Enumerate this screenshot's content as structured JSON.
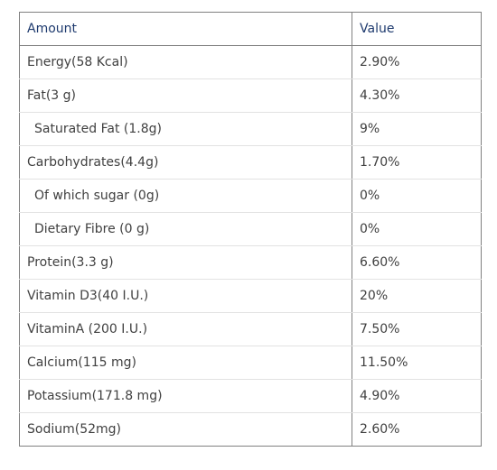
{
  "table": {
    "headers": {
      "amount": "Amount",
      "value": "Value"
    },
    "rows": [
      {
        "amount": "Energy(58 Kcal)",
        "value": "2.90%",
        "indent": false
      },
      {
        "amount": "Fat(3 g)",
        "value": "4.30%",
        "indent": false
      },
      {
        "amount": "Saturated Fat (1.8g)",
        "value": "9%",
        "indent": true
      },
      {
        "amount": "Carbohydrates(4.4g)",
        "value": "1.70%",
        "indent": false
      },
      {
        "amount": "Of which sugar (0g)",
        "value": "0%",
        "indent": true
      },
      {
        "amount": "Dietary Fibre (0 g)",
        "value": "0%",
        "indent": true
      },
      {
        "amount": "Protein(3.3 g)",
        "value": "6.60%",
        "indent": false
      },
      {
        "amount": "Vitamin D3(40 I.U.)",
        "value": "20%",
        "indent": false
      },
      {
        "amount": "VitaminA (200 I.U.)",
        "value": "7.50%",
        "indent": false
      },
      {
        "amount": "Calcium(115 mg)",
        "value": "11.50%",
        "indent": false
      },
      {
        "amount": "Potassium(171.8 mg)",
        "value": "4.90%",
        "indent": false
      },
      {
        "amount": "Sodium(52mg)",
        "value": "2.60%",
        "indent": false
      }
    ]
  }
}
